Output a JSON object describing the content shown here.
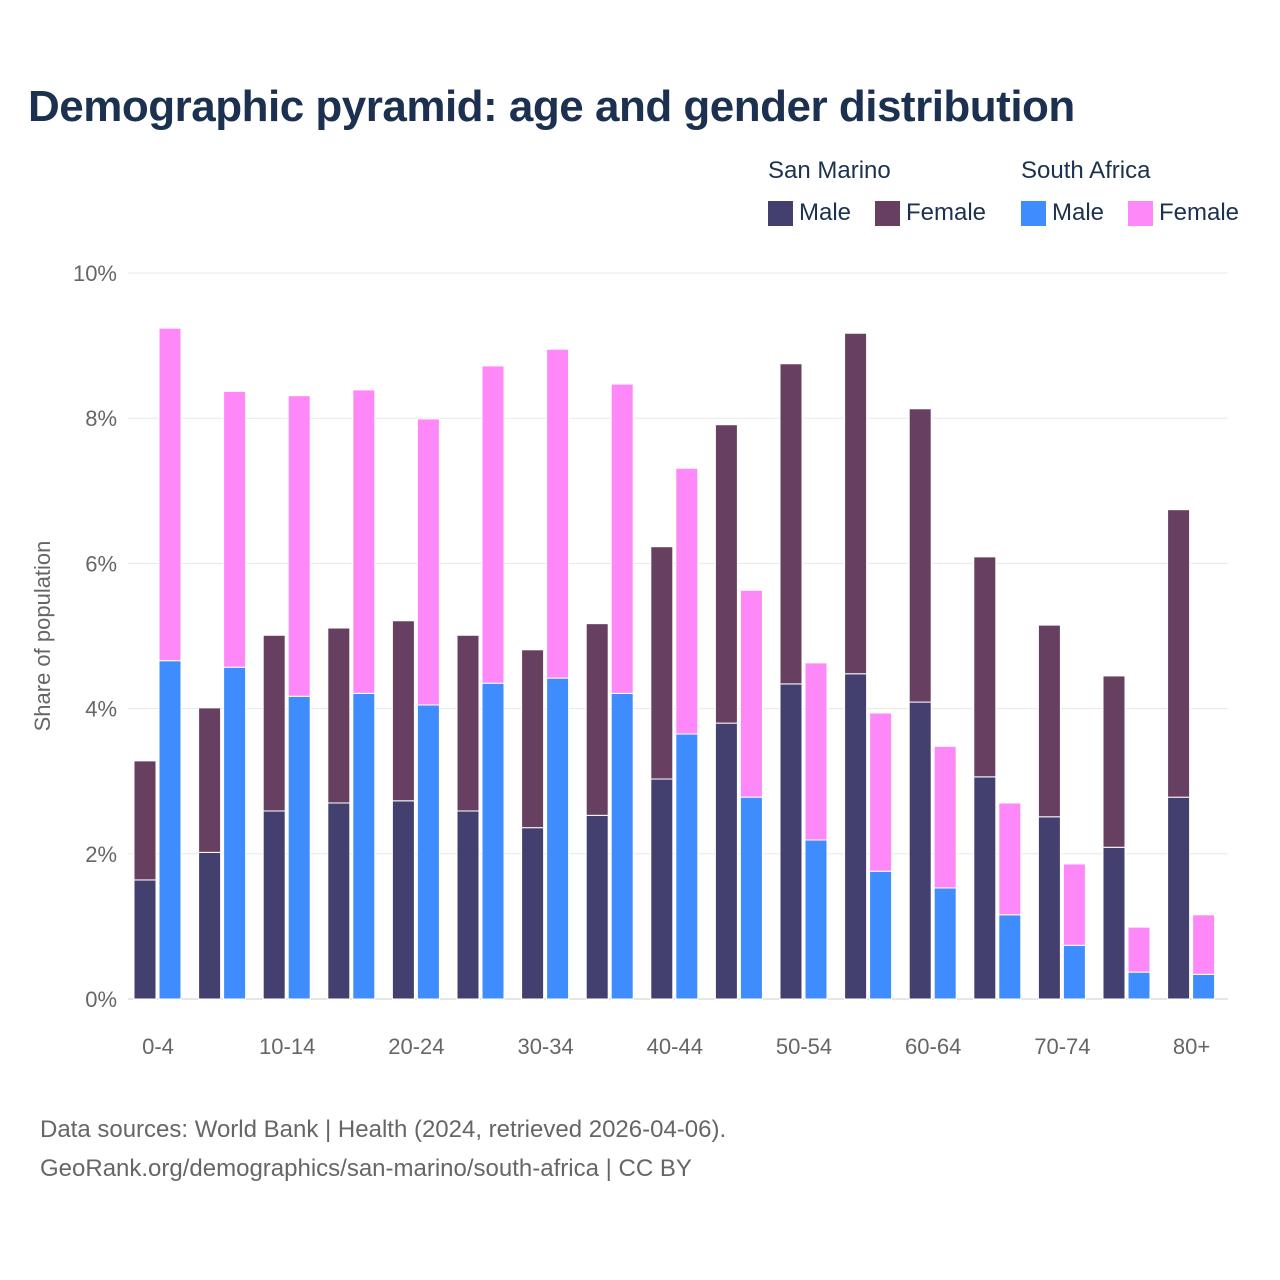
{
  "title": "Demographic pyramid: age and gender distribution",
  "legend": {
    "groups": [
      {
        "name": "San Marino",
        "items": [
          {
            "label": "Male",
            "color": "#433f6f"
          },
          {
            "label": "Female",
            "color": "#673f60"
          }
        ]
      },
      {
        "name": "South Africa",
        "items": [
          {
            "label": "Male",
            "color": "#3f8cff"
          },
          {
            "label": "Female",
            "color": "#ff88f8"
          }
        ]
      }
    ]
  },
  "chart_data": {
    "type": "bar",
    "stacked": true,
    "ylabel": "Share of population",
    "ylim": [
      0,
      10
    ],
    "yticks": [
      "0%",
      "2%",
      "4%",
      "6%",
      "8%",
      "10%"
    ],
    "grid": true,
    "legend_placement": "top-right",
    "categories": [
      "0-4",
      "5-9",
      "10-14",
      "15-19",
      "20-24",
      "25-29",
      "30-34",
      "35-39",
      "40-44",
      "45-49",
      "50-54",
      "55-59",
      "60-64",
      "65-69",
      "70-74",
      "75-79",
      "80+"
    ],
    "xtick_labels": [
      "0-4",
      "10-14",
      "20-24",
      "30-34",
      "40-44",
      "50-54",
      "60-64",
      "70-74",
      "80+"
    ],
    "series": [
      {
        "name": "San Marino Male",
        "country": "San Marino",
        "stack": 0,
        "color": "#433f6f",
        "values": [
          1.64,
          2.02,
          2.59,
          2.7,
          2.73,
          2.59,
          2.36,
          2.53,
          3.03,
          3.8,
          4.34,
          4.48,
          4.09,
          3.06,
          2.51,
          2.09,
          2.78
        ]
      },
      {
        "name": "San Marino Female",
        "country": "San Marino",
        "stack": 0,
        "color": "#673f60",
        "values": [
          1.64,
          1.99,
          2.42,
          2.41,
          2.48,
          2.42,
          2.45,
          2.64,
          3.2,
          4.11,
          4.41,
          4.69,
          4.04,
          3.03,
          2.64,
          2.36,
          3.96
        ]
      },
      {
        "name": "South Africa Male",
        "country": "South Africa",
        "stack": 1,
        "color": "#3f8cff",
        "values": [
          4.66,
          4.57,
          4.17,
          4.21,
          4.05,
          4.35,
          4.42,
          4.21,
          3.65,
          2.78,
          2.19,
          1.76,
          1.53,
          1.16,
          0.74,
          0.37,
          0.34
        ]
      },
      {
        "name": "South Africa Female",
        "country": "South Africa",
        "stack": 1,
        "color": "#ff88f8",
        "values": [
          4.58,
          3.8,
          4.14,
          4.18,
          3.94,
          4.37,
          4.53,
          4.26,
          3.66,
          2.85,
          2.44,
          2.18,
          1.95,
          1.54,
          1.12,
          0.62,
          0.82
        ]
      }
    ]
  },
  "sources": {
    "line1": "Data sources: World Bank | Health (2024, retrieved 2026-04-06).",
    "line2": "GeoRank.org/demographics/san-marino/south-africa | CC BY"
  }
}
